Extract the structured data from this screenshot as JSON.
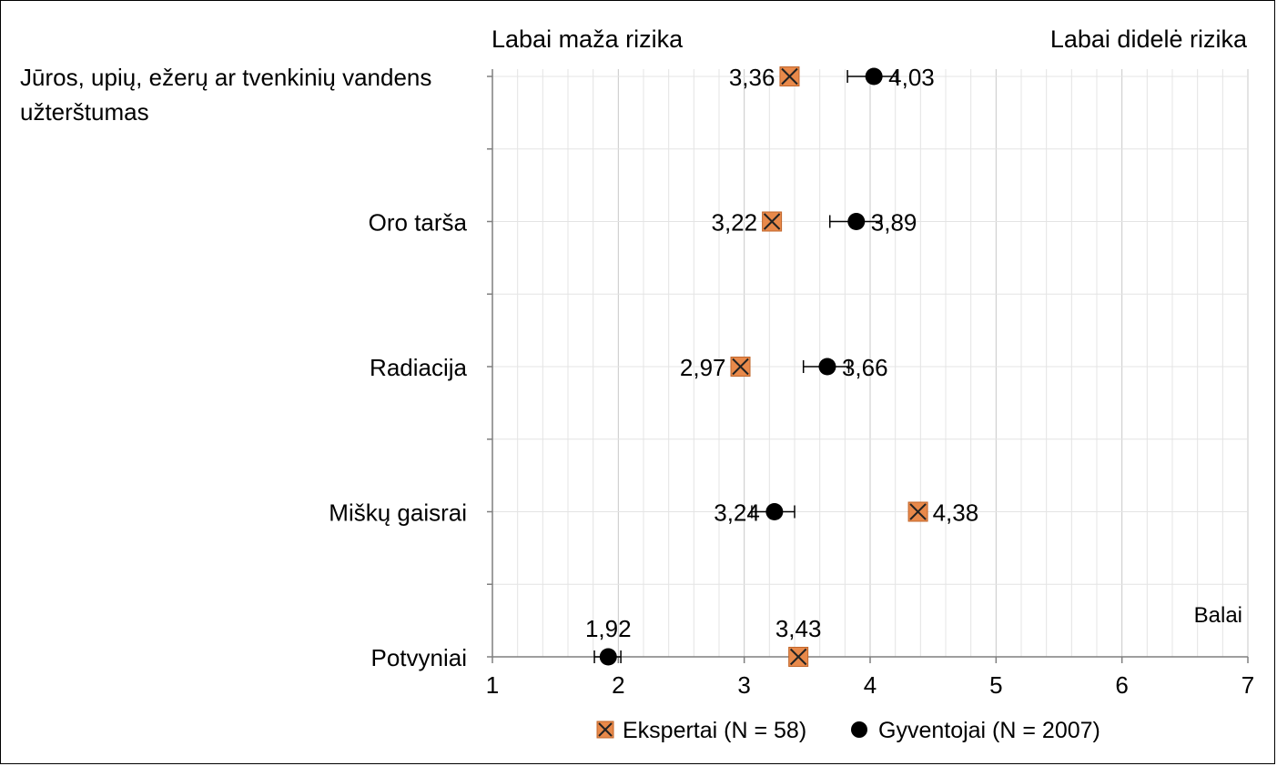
{
  "chart_data": {
    "type": "scatter",
    "orientation": "horizontal",
    "header_left": "Labai maža rizika",
    "header_right": "Labai didelė rizika",
    "x_unit_label": "Balai",
    "xlim": [
      1,
      7
    ],
    "x_ticks": [
      1,
      2,
      3,
      4,
      5,
      6,
      7
    ],
    "grid": true,
    "categories": [
      [
        "Jūros, upių, ežerų ar tvenkinių vandens",
        "užterštumas"
      ],
      [
        "Oro tarša"
      ],
      [
        "Radiacija"
      ],
      [
        "Miškų gaisrai"
      ],
      [
        "Potvyniai"
      ]
    ],
    "series": [
      {
        "name": "Ekspertai (N = 58)",
        "marker": "square-x",
        "color": "#e8894a",
        "values": [
          3.36,
          3.22,
          2.97,
          4.38,
          3.43
        ],
        "labels": [
          "3,36",
          "3,22",
          "2,97",
          "4,38",
          "3,43"
        ],
        "label_side": [
          "left",
          "left",
          "left",
          "right",
          "top"
        ]
      },
      {
        "name": "Gyventojai (N = 2007)",
        "marker": "circle",
        "color": "#000000",
        "values": [
          4.03,
          3.89,
          3.66,
          3.24,
          1.92
        ],
        "error_low": [
          3.82,
          3.68,
          3.47,
          3.06,
          1.81
        ],
        "error_high": [
          4.21,
          4.09,
          3.83,
          3.4,
          2.02
        ],
        "labels": [
          "4,03",
          "3,89",
          "3,66",
          "3,24",
          "1,92"
        ],
        "label_side": [
          "right",
          "right",
          "right",
          "left",
          "top"
        ]
      }
    ],
    "legend_position": "bottom"
  }
}
